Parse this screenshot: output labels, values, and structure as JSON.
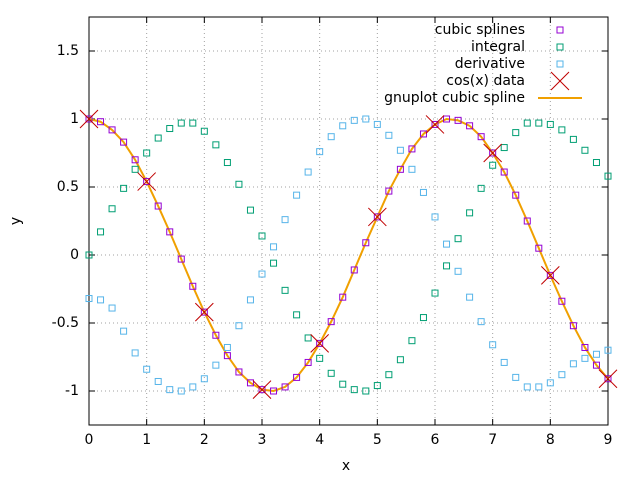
{
  "chart_data": {
    "type": "scatter",
    "x_label": "x",
    "y_label": "y",
    "xlim": [
      0,
      9
    ],
    "ylim": [
      -1.25,
      1.75
    ],
    "xticks": [
      0,
      1,
      2,
      3,
      4,
      5,
      6,
      7,
      8,
      9
    ],
    "yticks": [
      -1,
      -0.5,
      0,
      0.5,
      1,
      1.5
    ],
    "grid": true,
    "legend": "top-right",
    "x": [
      0,
      0.2,
      0.4,
      0.6,
      0.8,
      1.0,
      1.2,
      1.4,
      1.6,
      1.8,
      2.0,
      2.2,
      2.4,
      2.6,
      2.8,
      3.0,
      3.2,
      3.4,
      3.6,
      3.8,
      4.0,
      4.2,
      4.4,
      4.6,
      4.8,
      5.0,
      5.2,
      5.4,
      5.6,
      5.8,
      6.0,
      6.2,
      6.4,
      6.6,
      6.8,
      7.0,
      7.2,
      7.4,
      7.6,
      7.8,
      8.0,
      8.2,
      8.4,
      8.6,
      8.8,
      9.0
    ],
    "series": [
      {
        "name": "cubic splines",
        "color": "#9400d3",
        "marker": "square",
        "values": [
          1.0,
          0.98,
          0.92,
          0.83,
          0.7,
          0.54,
          0.36,
          0.17,
          -0.03,
          -0.23,
          -0.42,
          -0.59,
          -0.74,
          -0.86,
          -0.94,
          -0.99,
          -1.0,
          -0.97,
          -0.9,
          -0.79,
          -0.65,
          -0.49,
          -0.31,
          -0.11,
          0.09,
          0.28,
          0.47,
          0.63,
          0.78,
          0.89,
          0.96,
          1.0,
          0.99,
          0.95,
          0.87,
          0.75,
          0.61,
          0.44,
          0.25,
          0.05,
          -0.15,
          -0.34,
          -0.52,
          -0.68,
          -0.81,
          -0.91
        ]
      },
      {
        "name": "integral",
        "color": "#009e73",
        "marker": "square",
        "values": [
          0,
          0.17,
          0.34,
          0.49,
          0.63,
          0.75,
          0.86,
          0.93,
          0.97,
          0.97,
          0.91,
          0.81,
          0.68,
          0.52,
          0.33,
          0.14,
          -0.06,
          -0.26,
          -0.44,
          -0.61,
          -0.76,
          -0.87,
          -0.95,
          -0.99,
          -1.0,
          -0.96,
          -0.88,
          -0.77,
          -0.63,
          -0.46,
          -0.28,
          -0.08,
          0.12,
          0.31,
          0.49,
          0.66,
          0.79,
          0.9,
          0.97,
          0.97,
          0.96,
          0.92,
          0.85,
          0.77,
          0.68,
          0.58
        ]
      },
      {
        "name": "derivative",
        "color": "#56b4e9",
        "marker": "square",
        "values": [
          -0.32,
          -0.33,
          -0.39,
          -0.56,
          -0.72,
          -0.84,
          -0.93,
          -0.99,
          -1.0,
          -0.97,
          -0.91,
          -0.81,
          -0.68,
          -0.52,
          -0.33,
          -0.14,
          0.06,
          0.26,
          0.44,
          0.61,
          0.76,
          0.87,
          0.95,
          0.99,
          1.0,
          0.96,
          0.88,
          0.77,
          0.63,
          0.46,
          0.28,
          0.08,
          -0.12,
          -0.31,
          -0.49,
          -0.66,
          -0.79,
          -0.9,
          -0.97,
          -0.97,
          -0.94,
          -0.88,
          -0.8,
          -0.76,
          -0.73,
          -0.7
        ]
      },
      {
        "name": "cos(x) data",
        "color": "#c00000",
        "marker": "cross",
        "x": [
          0,
          1,
          2,
          3,
          4,
          5,
          6,
          7,
          8,
          9
        ],
        "values": [
          1,
          0.54,
          -0.42,
          -0.99,
          -0.65,
          0.28,
          0.96,
          0.75,
          -0.15,
          -0.91
        ]
      },
      {
        "name": "gnuplot cubic spline",
        "color": "#f0a000",
        "marker": "line",
        "values": [
          1.0,
          0.98,
          0.92,
          0.83,
          0.7,
          0.54,
          0.36,
          0.17,
          -0.03,
          -0.23,
          -0.42,
          -0.59,
          -0.74,
          -0.86,
          -0.94,
          -0.99,
          -1.0,
          -0.97,
          -0.9,
          -0.79,
          -0.65,
          -0.49,
          -0.31,
          -0.11,
          0.09,
          0.28,
          0.47,
          0.63,
          0.78,
          0.89,
          0.96,
          1.0,
          0.99,
          0.95,
          0.87,
          0.75,
          0.61,
          0.44,
          0.25,
          0.05,
          -0.15,
          -0.34,
          -0.52,
          -0.68,
          -0.81,
          -0.91
        ]
      }
    ]
  }
}
